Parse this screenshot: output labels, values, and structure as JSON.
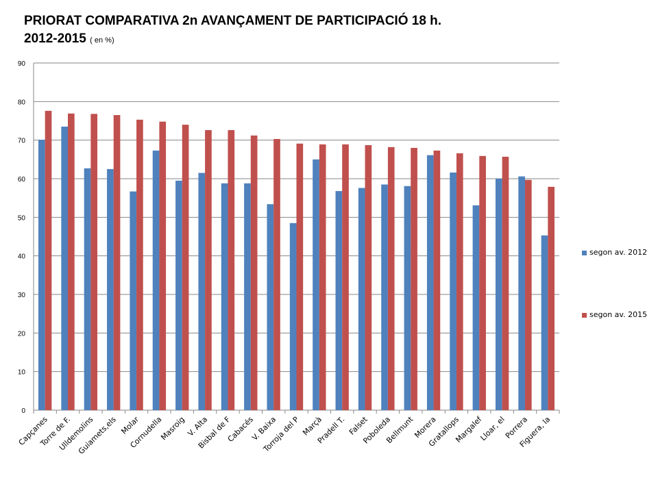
{
  "title_line1": "PRIORAT COMPARATIVA 2n AVANÇAMENT DE PARTICIPACIÓ 18 h.",
  "title_line2": "2012-2015",
  "title_note": "( en %)",
  "chart_data": {
    "type": "bar",
    "title": "PRIORAT COMPARATIVA 2n AVANÇAMENT DE PARTICIPACIÓ 18 h. 2012-2015 ( en %)",
    "xlabel": "",
    "ylabel": "",
    "ylim": [
      0,
      90
    ],
    "yticks": [
      0,
      10,
      20,
      30,
      40,
      50,
      60,
      70,
      80,
      90
    ],
    "grid": true,
    "legend_position": "right",
    "categories": [
      "Capçanes",
      "Torre de F.",
      "Ulldemolins",
      "Guiamets,els",
      "Molar",
      "Cornudella",
      "Masroig",
      "V. Alta",
      "Bisbal de F",
      "Cabacés",
      "V. Baixa",
      "Torroja del P",
      "Marçà",
      "Pradell T.",
      "Falset",
      "Poboleda",
      "Bellmunt",
      "Morera",
      "Gratallops",
      "Margalef",
      "Lloar, el",
      "Porrera",
      "Figuera, la"
    ],
    "series": [
      {
        "name": "segon av. 2012",
        "color": "#4f81bd",
        "values": [
          70.1,
          73.5,
          62.7,
          62.5,
          56.7,
          67.3,
          59.5,
          61.5,
          58.8,
          58.8,
          53.4,
          48.5,
          65.0,
          56.8,
          57.6,
          58.5,
          58.1,
          66.1,
          61.6,
          53.1,
          60.0,
          60.6,
          45.3
        ]
      },
      {
        "name": "segon av. 2015",
        "color": "#c0504d",
        "values": [
          77.6,
          76.9,
          76.8,
          76.5,
          75.3,
          74.8,
          74.0,
          72.6,
          72.6,
          71.2,
          70.3,
          69.1,
          68.9,
          68.9,
          68.7,
          68.2,
          68.0,
          67.3,
          66.6,
          65.9,
          65.7,
          59.7,
          57.9
        ]
      }
    ]
  }
}
